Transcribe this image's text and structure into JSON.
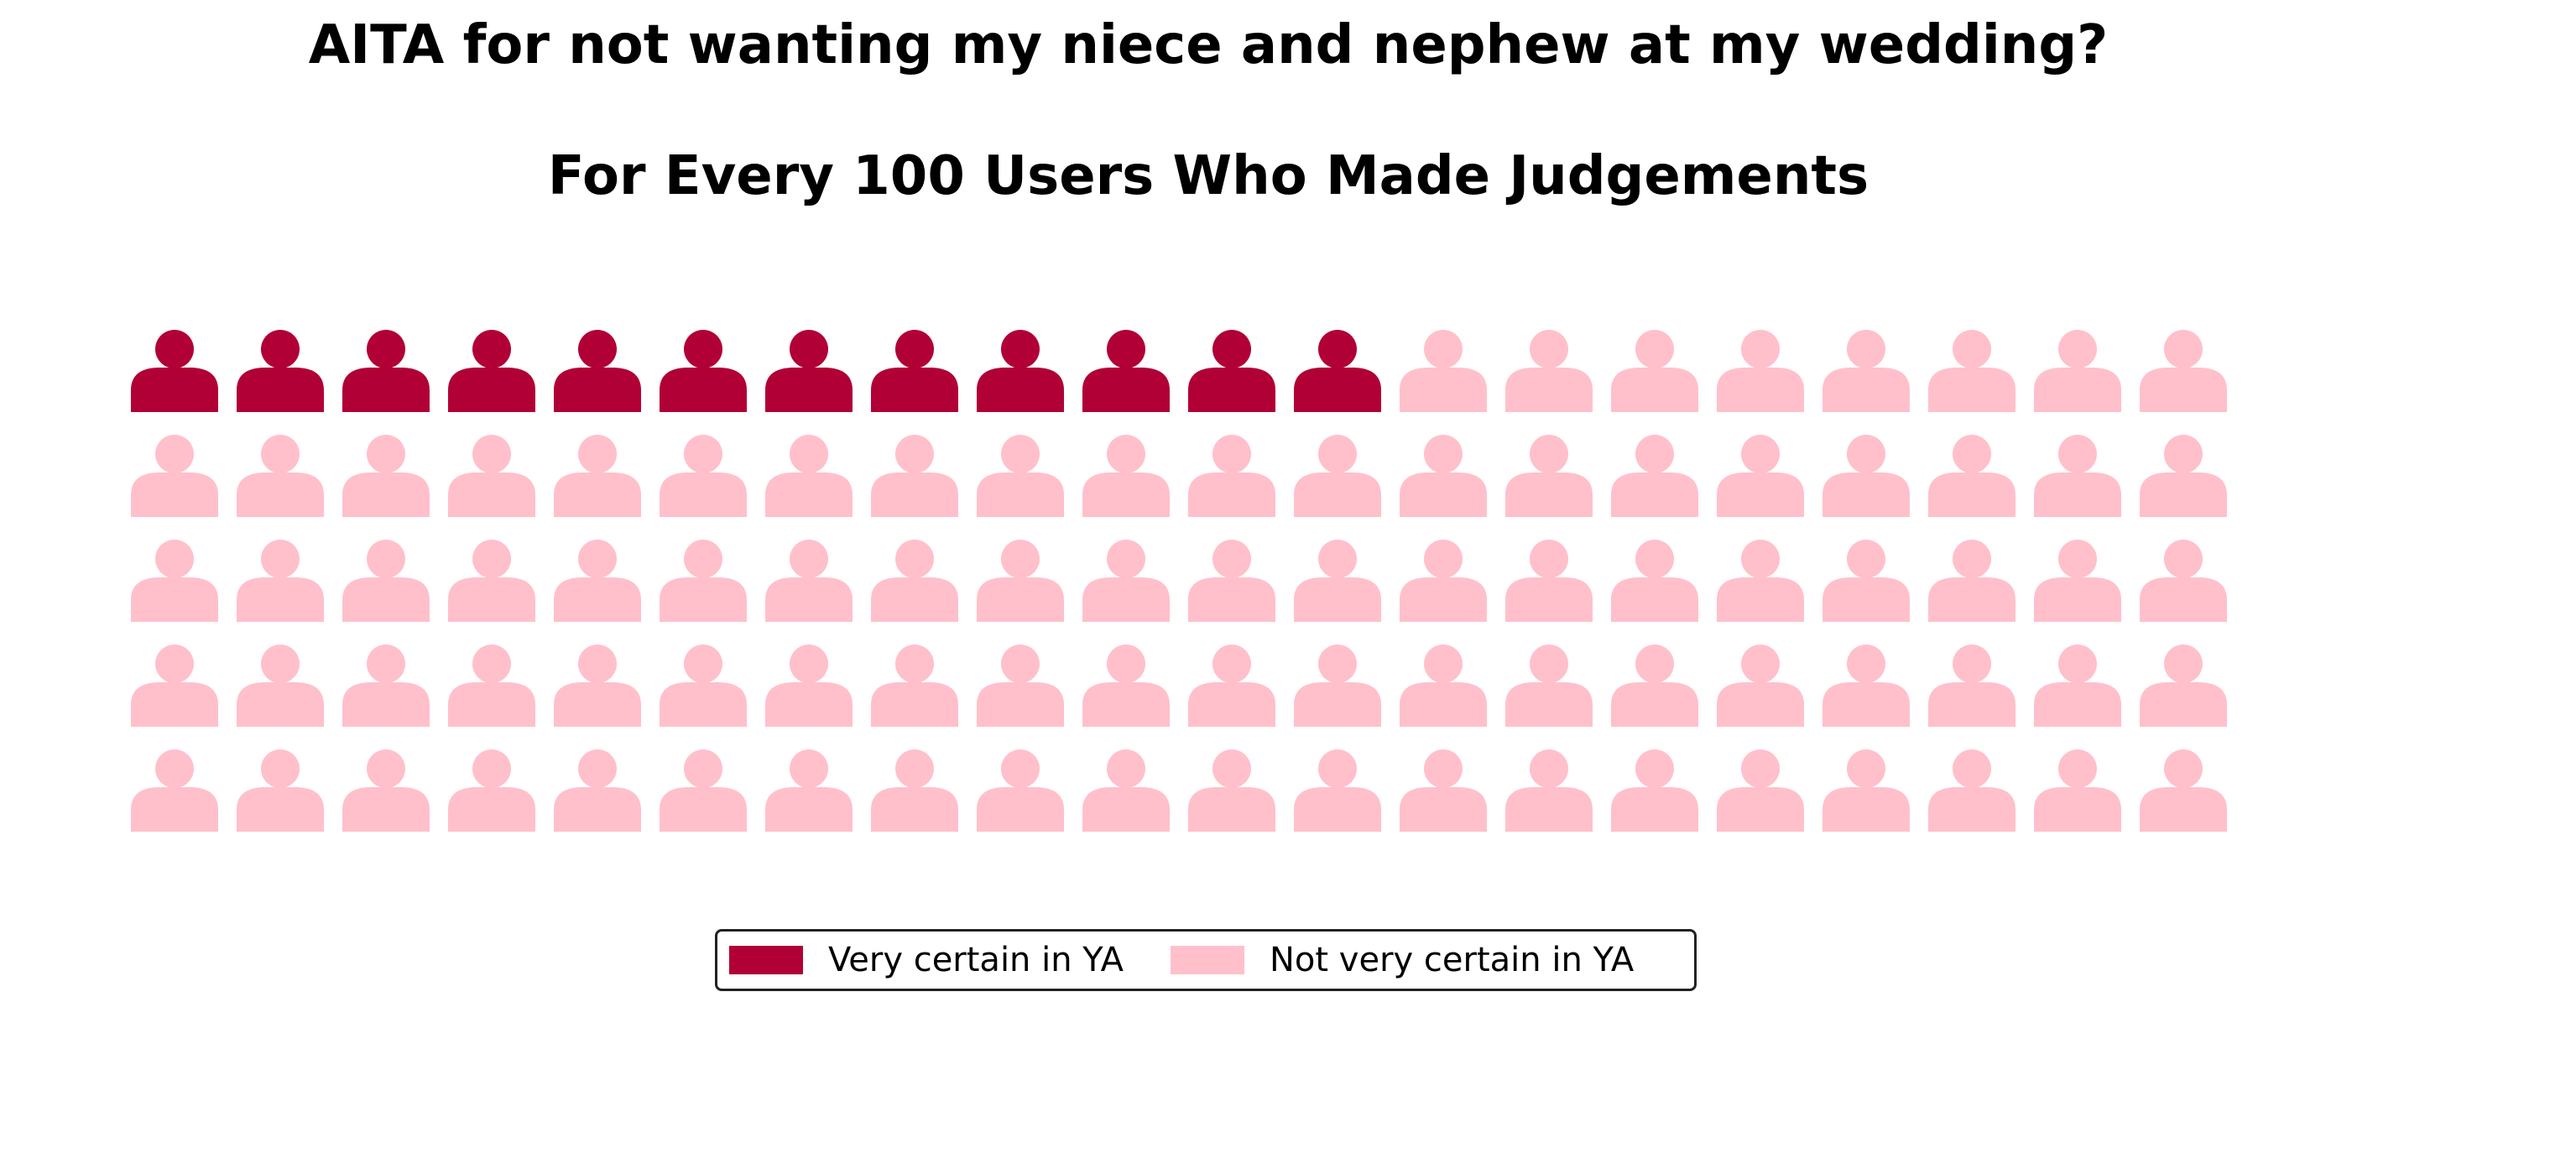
{
  "chart_data": {
    "type": "waffle",
    "title": "AITA for not wanting my niece and nephew at my wedding?",
    "subtitle": "For Every 100 Users Who Made Judgements",
    "total": 100,
    "rows": 5,
    "columns": 20,
    "icon": "person-icon",
    "series": [
      {
        "name": "Very certain in YA",
        "value": 12,
        "color": "#b10035"
      },
      {
        "name": "Not very certain in YA",
        "value": 88,
        "color": "#ffc0cb"
      }
    ],
    "legend_position": "bottom-center",
    "grid": false
  }
}
